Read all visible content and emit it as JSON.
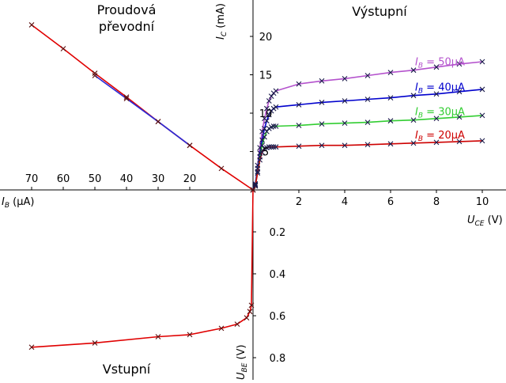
{
  "chart_data": {
    "type": "line",
    "quadrant_titles": {
      "transfer": [
        "Proudová",
        "převodní"
      ],
      "output": "Výstupní",
      "input": "Vstupní"
    },
    "axes": {
      "uce_label": "U_CE (V)",
      "ic_label": "I_C (mA)",
      "ib_label": "I_B (μA)",
      "ube_label": "U_BE (V)",
      "uce_range": [
        0,
        11
      ],
      "ic_range": [
        0,
        25
      ],
      "ib_range": [
        0,
        80
      ],
      "ube_range": [
        0,
        0.9
      ],
      "uce_ticks": [
        "2",
        "4",
        "6",
        "8",
        "10"
      ],
      "ic_ticks": [
        "5",
        "10",
        "15",
        "20"
      ],
      "ib_ticks": [
        "70",
        "60",
        "50",
        "40",
        "30",
        "20"
      ],
      "ube_ticks": [
        "0.2",
        "0.4",
        "0.6",
        "0.8"
      ]
    },
    "output_series": [
      {
        "name": "I_B = 50μA",
        "label_main": "I",
        "label_sub": "B",
        "label_rest": " = 50μA",
        "color": "#b452cd",
        "x": [
          0,
          0.1,
          0.2,
          0.3,
          0.4,
          0.5,
          0.6,
          0.7,
          0.8,
          0.9,
          1,
          2,
          3,
          4,
          5,
          6,
          7,
          8,
          9,
          10
        ],
        "y": [
          0,
          0.8,
          3.2,
          5.5,
          7.6,
          9.3,
          10.6,
          11.6,
          12.2,
          12.6,
          12.9,
          13.8,
          14.2,
          14.5,
          14.9,
          15.3,
          15.6,
          16.0,
          16.4,
          16.7
        ]
      },
      {
        "name": "I_B = 40μA",
        "label_main": "I",
        "label_sub": "B",
        "label_rest": " = 40μA",
        "color": "#0000cd",
        "x": [
          0,
          0.1,
          0.2,
          0.3,
          0.4,
          0.5,
          0.6,
          0.7,
          0.8,
          0.9,
          1,
          2,
          3,
          4,
          5,
          6,
          7,
          8,
          9,
          10
        ],
        "y": [
          0,
          0.7,
          2.8,
          4.8,
          6.5,
          8.0,
          9.0,
          9.8,
          10.3,
          10.6,
          10.8,
          11.1,
          11.4,
          11.6,
          11.8,
          12.0,
          12.3,
          12.5,
          12.8,
          13.1
        ]
      },
      {
        "name": "I_B = 30μA",
        "label_main": "I",
        "label_sub": "B",
        "label_rest": " = 30μA",
        "color": "#32cd32",
        "x": [
          0,
          0.1,
          0.2,
          0.3,
          0.4,
          0.5,
          0.6,
          0.7,
          0.8,
          0.9,
          1,
          2,
          3,
          4,
          5,
          6,
          7,
          8,
          9,
          10
        ],
        "y": [
          0,
          0.6,
          2.4,
          4.3,
          5.8,
          6.9,
          7.6,
          8.0,
          8.2,
          8.3,
          8.3,
          8.4,
          8.6,
          8.7,
          8.8,
          9.0,
          9.1,
          9.3,
          9.5,
          9.7
        ]
      },
      {
        "name": "I_B = 20μA",
        "label_main": "I",
        "label_sub": "B",
        "label_rest": " = 20μA",
        "color": "#cd0000",
        "x": [
          0,
          0.1,
          0.2,
          0.3,
          0.4,
          0.5,
          0.6,
          0.7,
          0.8,
          0.9,
          1,
          2,
          3,
          4,
          5,
          6,
          7,
          8,
          9,
          10
        ],
        "y": [
          0,
          0.5,
          2.2,
          3.9,
          4.9,
          5.4,
          5.5,
          5.6,
          5.6,
          5.6,
          5.6,
          5.7,
          5.8,
          5.8,
          5.9,
          6.0,
          6.1,
          6.2,
          6.3,
          6.4
        ]
      }
    ],
    "transfer_series": [
      {
        "color": "#e00000",
        "ib": [
          0,
          10,
          20,
          30,
          40,
          50,
          60,
          70
        ],
        "ic": [
          0,
          2.8,
          5.8,
          8.9,
          12.1,
          15.2,
          18.4,
          21.5
        ]
      },
      {
        "color": "#2a2ad8",
        "ib": [
          20,
          30,
          40,
          50
        ],
        "ic": [
          5.8,
          8.9,
          11.9,
          14.9
        ]
      }
    ],
    "input_series": [
      {
        "color": "#e00000",
        "ib": [
          0,
          0.5,
          1,
          2,
          5,
          10,
          20,
          30,
          50,
          70
        ],
        "ube": [
          0,
          0.55,
          0.58,
          0.61,
          0.64,
          0.66,
          0.69,
          0.7,
          0.73,
          0.75
        ]
      }
    ]
  }
}
